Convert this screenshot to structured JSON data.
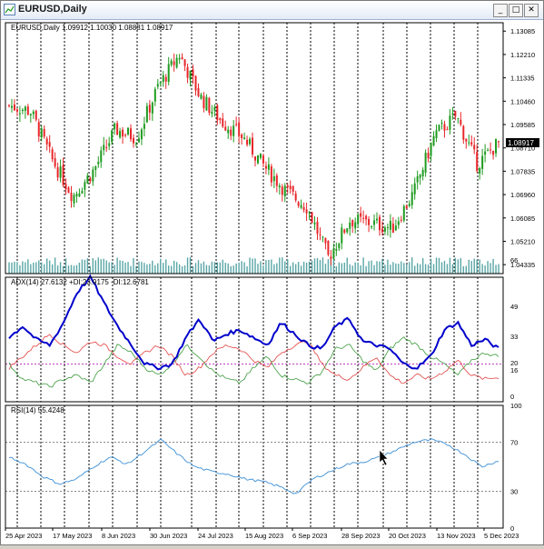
{
  "window": {
    "title": "EURUSD,Daily",
    "minimize_label": "_",
    "restore_label": "□",
    "close_label": "✕"
  },
  "colors": {
    "bull": "#1f9b1f",
    "bear": "#e8262a",
    "volume": "#5aa6a6",
    "adx": "#0000cc",
    "plus_di": "#3a9a3a",
    "minus_di": "#e24040",
    "rsi": "#3c8fd6",
    "grid": "#000000",
    "price_tag_bg": "#000000",
    "level_line": "#c040c0"
  },
  "main_panel": {
    "header": "EURUSD,Daily  1.09912 1.10030 1.08881 1.08917",
    "current_price": "1.08917",
    "price_scale": [
      "1.13085",
      "1.12210",
      "1.11335",
      "1.10460",
      "1.09585",
      "1.08710",
      "1.07835",
      "1.06960",
      "1.06085",
      "1.05210",
      "1.04335"
    ]
  },
  "adx_panel": {
    "header": "ADX(14) 27.6132 +DI:23.9175 -DI:12.6781",
    "scale": [
      "66",
      "49",
      "33",
      "20",
      "16",
      "0"
    ]
  },
  "rsi_panel": {
    "header": "RSI(14) 55.4248",
    "scale": [
      "100",
      "70",
      "30",
      "0"
    ]
  },
  "time_axis": [
    "25 Apr 2023",
    "17 May 2023",
    "8 Jun 2023",
    "30 Jun 2023",
    "24 Jul 2023",
    "15 Aug 2023",
    "6 Sep 2023",
    "28 Sep 2023",
    "20 Oct 2023",
    "13 Nov 2023",
    "5 Dec 2023"
  ],
  "chart_data": {
    "type": "candlestick",
    "symbol": "EURUSD",
    "timeframe": "Daily",
    "last_bar": {
      "open": 1.09912,
      "high": 1.1003,
      "low": 1.08881,
      "close": 1.08917
    },
    "price_axis_range": [
      1.04,
      1.134
    ],
    "approx_close_path": [
      [
        "25 Apr 2023",
        1.103
      ],
      [
        "4 May 2023",
        1.101
      ],
      [
        "17 May 2023",
        1.083
      ],
      [
        "31 May 2023",
        1.069
      ],
      [
        "8 Jun 2023",
        1.079
      ],
      [
        "16 Jun 2023",
        1.094
      ],
      [
        "30 Jun 2023",
        1.091
      ],
      [
        "12 Jul 2023",
        1.11
      ],
      [
        "18 Jul 2023",
        1.122
      ],
      [
        "24 Jul 2023",
        1.106
      ],
      [
        "8 Aug 2023",
        1.097
      ],
      [
        "15 Aug 2023",
        1.091
      ],
      [
        "28 Aug 2023",
        1.08
      ],
      [
        "6 Sep 2023",
        1.071
      ],
      [
        "21 Sep 2023",
        1.065
      ],
      [
        "3 Oct 2023",
        1.046
      ],
      [
        "12 Oct 2023",
        1.06
      ],
      [
        "20 Oct 2023",
        1.059
      ],
      [
        "31 Oct 2023",
        1.057
      ],
      [
        "13 Nov 2023",
        1.07
      ],
      [
        "21 Nov 2023",
        1.092
      ],
      [
        "29 Nov 2023",
        1.099
      ],
      [
        "5 Dec 2023",
        1.081
      ],
      [
        "13 Dec 2023",
        1.089
      ]
    ],
    "indicators": {
      "adx": {
        "period": 14,
        "value": 27.6132,
        "plus_di": 23.9175,
        "minus_di": 12.6781,
        "levels": [
          20
        ],
        "scale_range": [
          0,
          66
        ]
      },
      "rsi": {
        "period": 14,
        "value": 55.4248,
        "levels": [
          30,
          70
        ],
        "scale_range": [
          0,
          100
        ]
      }
    }
  }
}
